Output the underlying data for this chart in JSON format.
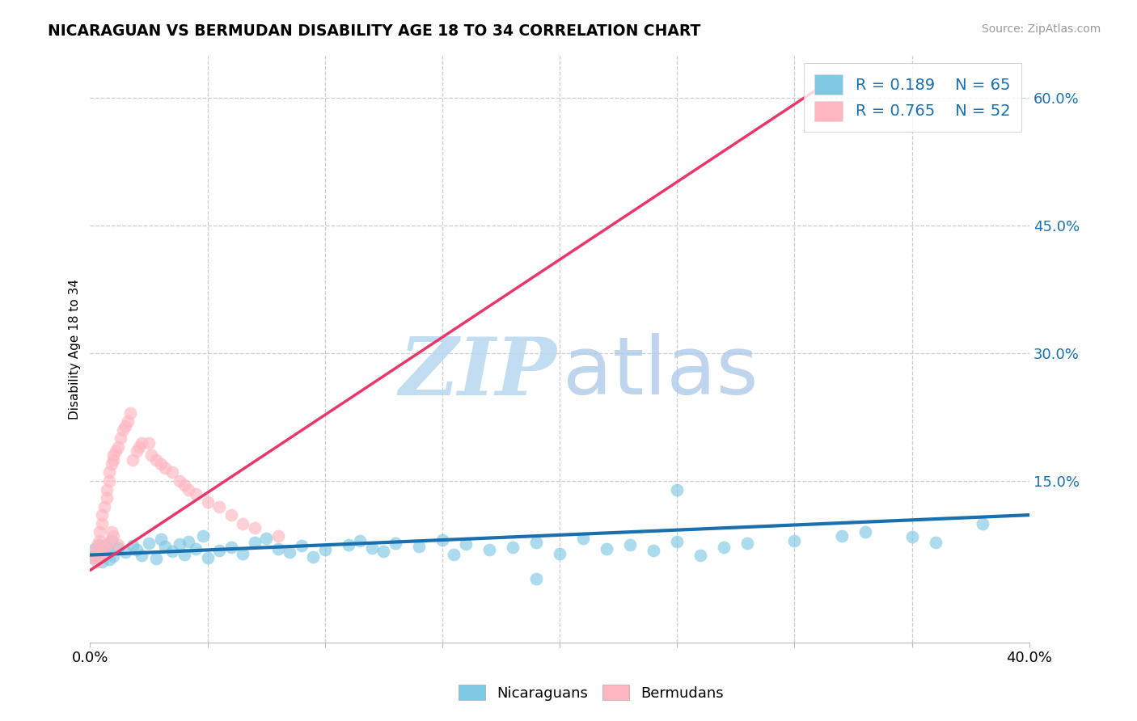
{
  "title": "NICARAGUAN VS BERMUDAN DISABILITY AGE 18 TO 34 CORRELATION CHART",
  "source": "Source: ZipAtlas.com",
  "ylabel": "Disability Age 18 to 34",
  "xlim": [
    0.0,
    0.4
  ],
  "ylim": [
    -0.04,
    0.65
  ],
  "xtick_positions": [
    0.0,
    0.05,
    0.1,
    0.15,
    0.2,
    0.25,
    0.3,
    0.35,
    0.4
  ],
  "xtick_labels": [
    "0.0%",
    "",
    "",
    "",
    "",
    "",
    "",
    "",
    "40.0%"
  ],
  "yticks_right": [
    0.15,
    0.3,
    0.45,
    0.6
  ],
  "ytick_labels_right": [
    "15.0%",
    "30.0%",
    "45.0%",
    "60.0%"
  ],
  "blue_color": "#7ec8e3",
  "pink_color": "#ffb6c1",
  "blue_line_color": "#1a6faf",
  "pink_line_color": "#e8376a",
  "R_blue": 0.189,
  "N_blue": 65,
  "R_pink": 0.765,
  "N_pink": 52,
  "watermark_zip_color": "#b8d8f0",
  "watermark_atlas_color": "#a8c8e8",
  "legend_label_color": "#1a6faf",
  "blue_scatter_x": [
    0.001,
    0.002,
    0.003,
    0.004,
    0.005,
    0.006,
    0.007,
    0.008,
    0.009,
    0.01,
    0.012,
    0.015,
    0.018,
    0.02,
    0.022,
    0.025,
    0.028,
    0.03,
    0.032,
    0.035,
    0.038,
    0.04,
    0.042,
    0.045,
    0.048,
    0.05,
    0.055,
    0.06,
    0.065,
    0.07,
    0.075,
    0.08,
    0.085,
    0.09,
    0.095,
    0.1,
    0.11,
    0.115,
    0.12,
    0.125,
    0.13,
    0.14,
    0.15,
    0.155,
    0.16,
    0.17,
    0.18,
    0.19,
    0.2,
    0.21,
    0.22,
    0.23,
    0.24,
    0.25,
    0.26,
    0.27,
    0.28,
    0.3,
    0.32,
    0.33,
    0.35,
    0.36,
    0.38,
    0.25,
    0.19
  ],
  "blue_scatter_y": [
    0.06,
    0.07,
    0.065,
    0.075,
    0.055,
    0.068,
    0.072,
    0.058,
    0.08,
    0.062,
    0.071,
    0.066,
    0.074,
    0.069,
    0.063,
    0.077,
    0.059,
    0.082,
    0.073,
    0.067,
    0.076,
    0.064,
    0.079,
    0.07,
    0.085,
    0.06,
    0.068,
    0.072,
    0.065,
    0.078,
    0.083,
    0.07,
    0.066,
    0.074,
    0.061,
    0.069,
    0.075,
    0.08,
    0.071,
    0.067,
    0.077,
    0.073,
    0.081,
    0.064,
    0.076,
    0.069,
    0.072,
    0.078,
    0.065,
    0.083,
    0.07,
    0.075,
    0.068,
    0.079,
    0.063,
    0.072,
    0.077,
    0.08,
    0.085,
    0.09,
    0.084,
    0.078,
    0.1,
    0.14,
    0.035
  ],
  "pink_scatter_x": [
    0.001,
    0.002,
    0.003,
    0.003,
    0.004,
    0.004,
    0.005,
    0.005,
    0.006,
    0.007,
    0.007,
    0.008,
    0.008,
    0.009,
    0.01,
    0.01,
    0.011,
    0.012,
    0.013,
    0.014,
    0.015,
    0.016,
    0.017,
    0.018,
    0.02,
    0.021,
    0.022,
    0.025,
    0.026,
    0.028,
    0.03,
    0.032,
    0.035,
    0.038,
    0.04,
    0.042,
    0.045,
    0.05,
    0.055,
    0.06,
    0.065,
    0.07,
    0.08,
    0.003,
    0.004,
    0.005,
    0.006,
    0.007,
    0.008,
    0.009,
    0.01,
    0.012
  ],
  "pink_scatter_y": [
    0.06,
    0.065,
    0.07,
    0.075,
    0.08,
    0.09,
    0.1,
    0.11,
    0.12,
    0.13,
    0.14,
    0.15,
    0.16,
    0.17,
    0.175,
    0.18,
    0.185,
    0.19,
    0.2,
    0.21,
    0.215,
    0.22,
    0.23,
    0.175,
    0.185,
    0.19,
    0.195,
    0.195,
    0.18,
    0.175,
    0.17,
    0.165,
    0.16,
    0.15,
    0.145,
    0.14,
    0.135,
    0.125,
    0.12,
    0.11,
    0.1,
    0.095,
    0.085,
    0.055,
    0.06,
    0.065,
    0.07,
    0.075,
    0.08,
    0.09,
    0.085,
    0.075
  ],
  "pink_line_x": [
    0.0,
    0.315
  ],
  "pink_line_y": [
    0.045,
    0.62
  ],
  "blue_line_x": [
    0.0,
    0.4
  ],
  "blue_line_y": [
    0.063,
    0.11
  ]
}
